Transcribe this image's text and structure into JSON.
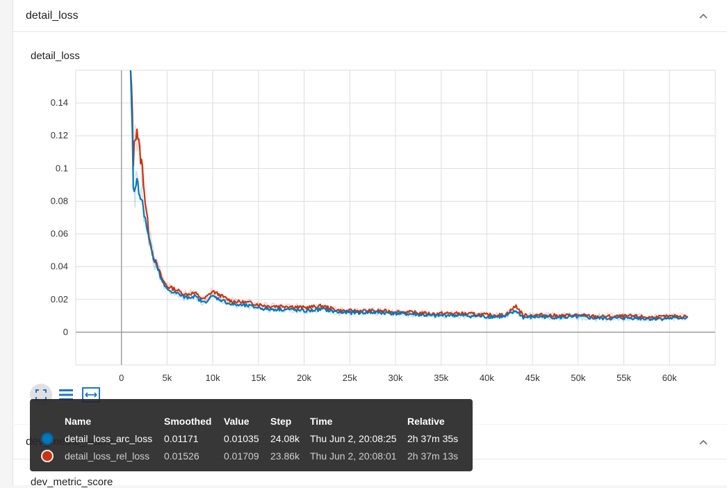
{
  "cards": [
    {
      "title": "detail_loss"
    },
    {
      "title": "dev_metric_score"
    }
  ],
  "plot": {
    "title": "detail_loss"
  },
  "below_card_plot_title": "dev_metric_score",
  "chart_data": {
    "type": "line",
    "title": "detail_loss",
    "xlabel": "",
    "ylabel": "",
    "xlim": [
      -5000,
      65000
    ],
    "ylim": [
      -0.02,
      0.16
    ],
    "x_ticks": [
      0,
      5000,
      10000,
      15000,
      20000,
      25000,
      30000,
      35000,
      40000,
      45000,
      50000,
      55000,
      60000
    ],
    "x_tick_labels": [
      "0",
      "5k",
      "10k",
      "15k",
      "20k",
      "25k",
      "30k",
      "35k",
      "40k",
      "45k",
      "50k",
      "55k",
      "60k"
    ],
    "y_ticks": [
      0,
      0.02,
      0.04,
      0.06,
      0.08,
      0.1,
      0.12,
      0.14
    ],
    "y_tick_labels": [
      "0",
      "0.02",
      "0.04",
      "0.06",
      "0.08",
      "0.1",
      "0.12",
      "0.14"
    ],
    "grid": true,
    "series": [
      {
        "name": "detail_loss_arc_loss",
        "color": "#0077bb",
        "x": [
          1000,
          1200,
          1300,
          1500,
          1700,
          2000,
          2300,
          2600,
          3000,
          3500,
          4000,
          4500,
          5000,
          6000,
          7000,
          8000,
          9000,
          10000,
          12000,
          14000,
          16000,
          18000,
          20000,
          22000,
          24000,
          26000,
          28000,
          30000,
          32000,
          34000,
          36000,
          38000,
          40000,
          42000,
          43200,
          44000,
          46000,
          48000,
          50000,
          52000,
          54000,
          56000,
          58000,
          60000,
          62000
        ],
        "values": [
          0.17,
          0.12,
          0.09,
          0.085,
          0.095,
          0.085,
          0.08,
          0.07,
          0.058,
          0.045,
          0.038,
          0.03,
          0.026,
          0.024,
          0.021,
          0.022,
          0.018,
          0.022,
          0.017,
          0.016,
          0.014,
          0.014,
          0.013,
          0.014,
          0.012,
          0.012,
          0.012,
          0.0115,
          0.011,
          0.01,
          0.0105,
          0.01,
          0.0095,
          0.0095,
          0.013,
          0.009,
          0.0095,
          0.009,
          0.0095,
          0.0085,
          0.0085,
          0.0088,
          0.0082,
          0.0085,
          0.009
        ]
      },
      {
        "name": "detail_loss_rel_loss",
        "color": "#cc3311",
        "x": [
          1000,
          1200,
          1300,
          1500,
          1700,
          2000,
          2300,
          2600,
          3000,
          3500,
          4000,
          4500,
          5000,
          6000,
          7000,
          8000,
          9000,
          10000,
          12000,
          14000,
          16000,
          18000,
          20000,
          22000,
          24000,
          26000,
          28000,
          30000,
          32000,
          34000,
          36000,
          38000,
          40000,
          42000,
          43200,
          44000,
          46000,
          48000,
          50000,
          52000,
          54000,
          56000,
          58000,
          60000,
          62000
        ],
        "values": [
          0.17,
          0.13,
          0.105,
          0.12,
          0.125,
          0.11,
          0.1,
          0.08,
          0.06,
          0.046,
          0.039,
          0.032,
          0.028,
          0.026,
          0.023,
          0.024,
          0.02,
          0.025,
          0.019,
          0.018,
          0.016,
          0.016,
          0.015,
          0.016,
          0.013,
          0.013,
          0.013,
          0.0125,
          0.012,
          0.0112,
          0.0115,
          0.0112,
          0.0105,
          0.0105,
          0.016,
          0.0102,
          0.0105,
          0.01,
          0.0105,
          0.0095,
          0.0095,
          0.0098,
          0.009,
          0.0095,
          0.0098
        ]
      }
    ]
  },
  "tooltip": {
    "headers": {
      "name": "Name",
      "smoothed": "Smoothed",
      "value": "Value",
      "step": "Step",
      "time": "Time",
      "relative": "Relative"
    },
    "rows": [
      {
        "name": "detail_loss_arc_loss",
        "smoothed": "0.01171",
        "value": "0.01035",
        "step": "24.08k",
        "time": "Thu Jun 2, 20:08:25",
        "relative": "2h 37m 35s",
        "color": "#0077bb"
      },
      {
        "name": "detail_loss_rel_loss",
        "smoothed": "0.01526",
        "value": "0.01709",
        "step": "23.86k",
        "time": "Thu Jun 2, 20:08:01",
        "relative": "2h 37m 13s",
        "color": "#cc3311"
      }
    ]
  },
  "tools": [
    "fit-domain-icon",
    "toggle-log-icon",
    "expand-icon"
  ]
}
